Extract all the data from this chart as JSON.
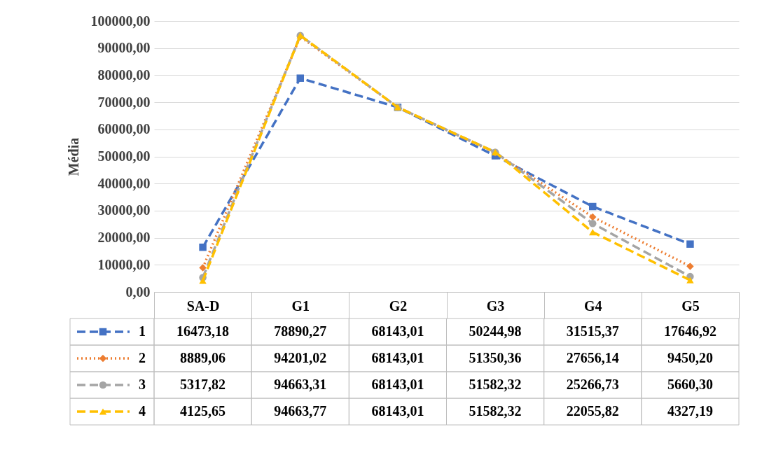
{
  "chart_data": {
    "type": "line",
    "ylabel": "Média",
    "categories": [
      "SA-D",
      "G1",
      "G2",
      "G3",
      "G4",
      "G5"
    ],
    "ylim": [
      0,
      100000
    ],
    "yticks": [
      {
        "value": 0,
        "label": "0,00"
      },
      {
        "value": 10000,
        "label": "10000,00"
      },
      {
        "value": 20000,
        "label": "20000,00"
      },
      {
        "value": 30000,
        "label": "30000,00"
      },
      {
        "value": 40000,
        "label": "40000,00"
      },
      {
        "value": 50000,
        "label": "50000,00"
      },
      {
        "value": 60000,
        "label": "60000,00"
      },
      {
        "value": 70000,
        "label": "70000,00"
      },
      {
        "value": 80000,
        "label": "80000,00"
      },
      {
        "value": 90000,
        "label": "90000,00"
      },
      {
        "value": 100000,
        "label": "100000,00"
      }
    ],
    "grid": "y",
    "legend": "bottom left",
    "series": [
      {
        "name": "1",
        "color": "#4472c4",
        "marker": "square",
        "line_style": "dashed",
        "values": [
          16473.18,
          78890.27,
          68143.01,
          50244.98,
          31515.37,
          17646.92
        ],
        "value_labels": [
          "16473,18",
          "78890,27",
          "68143,01",
          "50244,98",
          "31515,37",
          "17646,92"
        ]
      },
      {
        "name": "2",
        "color": "#ed7d31",
        "marker": "diamond",
        "line_style": "dotted",
        "values": [
          8889.06,
          94201.02,
          68143.01,
          51350.36,
          27656.14,
          9450.2
        ],
        "value_labels": [
          "8889,06",
          "94201,02",
          "68143,01",
          "51350,36",
          "27656,14",
          "9450,20"
        ]
      },
      {
        "name": "3",
        "color": "#a5a5a5",
        "marker": "circle",
        "line_style": "dashed",
        "values": [
          5317.82,
          94663.31,
          68143.01,
          51582.32,
          25266.73,
          5660.3
        ],
        "value_labels": [
          "5317,82",
          "94663,31",
          "68143,01",
          "51582,32",
          "25266,73",
          "5660,30"
        ]
      },
      {
        "name": "4",
        "color": "#ffc000",
        "marker": "triangle",
        "line_style": "dashed",
        "values": [
          4125.65,
          94663.77,
          68143.01,
          51582.32,
          22055.82,
          4327.19
        ],
        "value_labels": [
          "4125,65",
          "94663,77",
          "68143,01",
          "51582,32",
          "22055,82",
          "4327,19"
        ]
      }
    ]
  }
}
